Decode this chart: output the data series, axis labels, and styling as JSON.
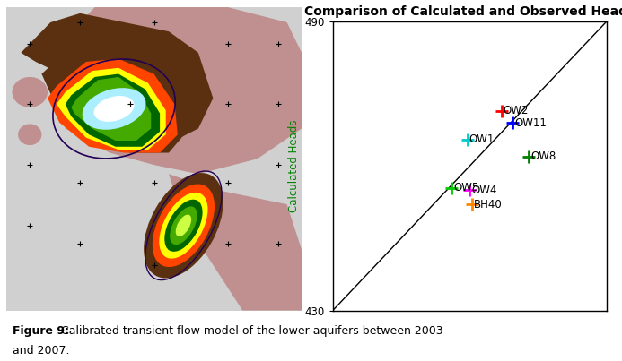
{
  "title": "Comparison of Calculated and Observed Heads",
  "ylabel": "Calculated Heads",
  "ylim": [
    430,
    490
  ],
  "xlim": [
    430,
    490
  ],
  "yticks": [
    430,
    490
  ],
  "points": [
    {
      "label": "OW2",
      "observed": 467.0,
      "calculated": 471.5,
      "color": "#ff0000"
    },
    {
      "label": "OW11",
      "observed": 469.5,
      "calculated": 469.0,
      "color": "#0000ff"
    },
    {
      "label": "OW1",
      "observed": 459.5,
      "calculated": 465.5,
      "color": "#00cccc"
    },
    {
      "label": "OW8",
      "observed": 473.0,
      "calculated": 462.0,
      "color": "#008000"
    },
    {
      "label": "OW5",
      "observed": 456.0,
      "calculated": 455.5,
      "color": "#00cc00"
    },
    {
      "label": "OW4",
      "observed": 460.0,
      "calculated": 455.0,
      "color": "#ff00ff"
    },
    {
      "label": "BH40",
      "observed": 460.5,
      "calculated": 452.0,
      "color": "#ff8800"
    }
  ],
  "diag_line_color": "#000000",
  "label_color": "#000000",
  "bg_color": "#ffffff",
  "axis_label_color": "#008000",
  "marker_size": 10,
  "label_fontsize": 8.5,
  "title_fontsize": 10,
  "map_colors": {
    "background": "#c8c8c8",
    "pink_outer": "#c8a0a0",
    "brown_dark": "#5a3010",
    "brown_mid": "#8B5a20",
    "orange": "#ff8800",
    "yellow": "#ffff00",
    "green_dark": "#006000",
    "green_mid": "#00aa00",
    "green_light": "#88ff00",
    "cyan_light": "#aaffff",
    "white": "#ffffff"
  }
}
